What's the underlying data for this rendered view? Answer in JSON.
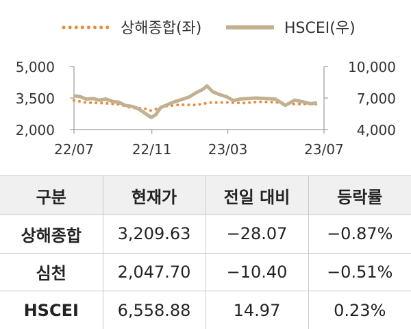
{
  "chart_data": {
    "type": "line",
    "legend": [
      {
        "label": "상해종합(좌)",
        "style": "dotted",
        "color": "#E98B3A"
      },
      {
        "label": "HSCEI(우)",
        "style": "solid",
        "color": "#C2B091"
      }
    ],
    "x_ticks": [
      "22/07",
      "22/11",
      "23/03",
      "23/07"
    ],
    "y_left": {
      "ticks": [
        "5,000",
        "3,500",
        "2,000"
      ],
      "range": [
        2000,
        5000
      ]
    },
    "y_right": {
      "ticks": [
        "10,000",
        "7,000",
        "4,000"
      ],
      "range": [
        4000,
        10000
      ]
    },
    "x_range": [
      "2022-07-01",
      "2023-07-31"
    ],
    "series": [
      {
        "name": "상해종합(좌)",
        "axis": "left",
        "color": "#E98B3A",
        "style": "dotted",
        "points": [
          [
            "2022-07-01",
            3390
          ],
          [
            "2022-07-20",
            3280
          ],
          [
            "2022-08-15",
            3260
          ],
          [
            "2022-09-10",
            3200
          ],
          [
            "2022-09-30",
            3030
          ],
          [
            "2022-10-20",
            3000
          ],
          [
            "2022-10-31",
            2900
          ],
          [
            "2022-11-20",
            3100
          ],
          [
            "2022-12-15",
            3180
          ],
          [
            "2023-01-10",
            3170
          ],
          [
            "2023-02-01",
            3280
          ],
          [
            "2023-02-28",
            3290
          ],
          [
            "2023-03-25",
            3260
          ],
          [
            "2023-04-20",
            3320
          ],
          [
            "2023-05-15",
            3300
          ],
          [
            "2023-06-10",
            3210
          ],
          [
            "2023-07-01",
            3220
          ],
          [
            "2023-07-20",
            3210
          ]
        ]
      },
      {
        "name": "HSCEI(우)",
        "axis": "right",
        "color": "#C2B091",
        "style": "solid",
        "points": [
          [
            "2022-07-01",
            7200
          ],
          [
            "2022-07-10",
            7150
          ],
          [
            "2022-07-20",
            6900
          ],
          [
            "2022-08-01",
            6950
          ],
          [
            "2022-08-10",
            6800
          ],
          [
            "2022-08-20",
            6900
          ],
          [
            "2022-09-01",
            6650
          ],
          [
            "2022-09-10",
            6600
          ],
          [
            "2022-09-20",
            6300
          ],
          [
            "2022-10-01",
            6200
          ],
          [
            "2022-10-10",
            6000
          ],
          [
            "2022-10-20",
            5600
          ],
          [
            "2022-10-31",
            5150
          ],
          [
            "2022-11-07",
            5400
          ],
          [
            "2022-11-15",
            6100
          ],
          [
            "2022-11-25",
            6350
          ],
          [
            "2022-12-05",
            6600
          ],
          [
            "2022-12-15",
            6800
          ],
          [
            "2022-12-30",
            7100
          ],
          [
            "2023-01-10",
            7500
          ],
          [
            "2023-01-20",
            7800
          ],
          [
            "2023-01-27",
            8150
          ],
          [
            "2023-02-05",
            7600
          ],
          [
            "2023-02-15",
            7350
          ],
          [
            "2023-02-28",
            7100
          ],
          [
            "2023-03-10",
            6750
          ],
          [
            "2023-03-20",
            6900
          ],
          [
            "2023-04-01",
            6950
          ],
          [
            "2023-04-15",
            7000
          ],
          [
            "2023-04-30",
            6950
          ],
          [
            "2023-05-15",
            6900
          ],
          [
            "2023-05-31",
            6300
          ],
          [
            "2023-06-15",
            6800
          ],
          [
            "2023-06-30",
            6600
          ],
          [
            "2023-07-10",
            6450
          ],
          [
            "2023-07-20",
            6550
          ]
        ]
      }
    ]
  },
  "table": {
    "headers": [
      "구분",
      "현재가",
      "전일 대비",
      "등락률"
    ],
    "rows": [
      [
        "상해종합",
        "3,209.63",
        "−28.07",
        "−0.87%"
      ],
      [
        "심천",
        "2,047.70",
        "−10.40",
        "−0.51%"
      ],
      [
        "HSCEI",
        "6,558.88",
        "14.97",
        "0.23%"
      ]
    ]
  }
}
